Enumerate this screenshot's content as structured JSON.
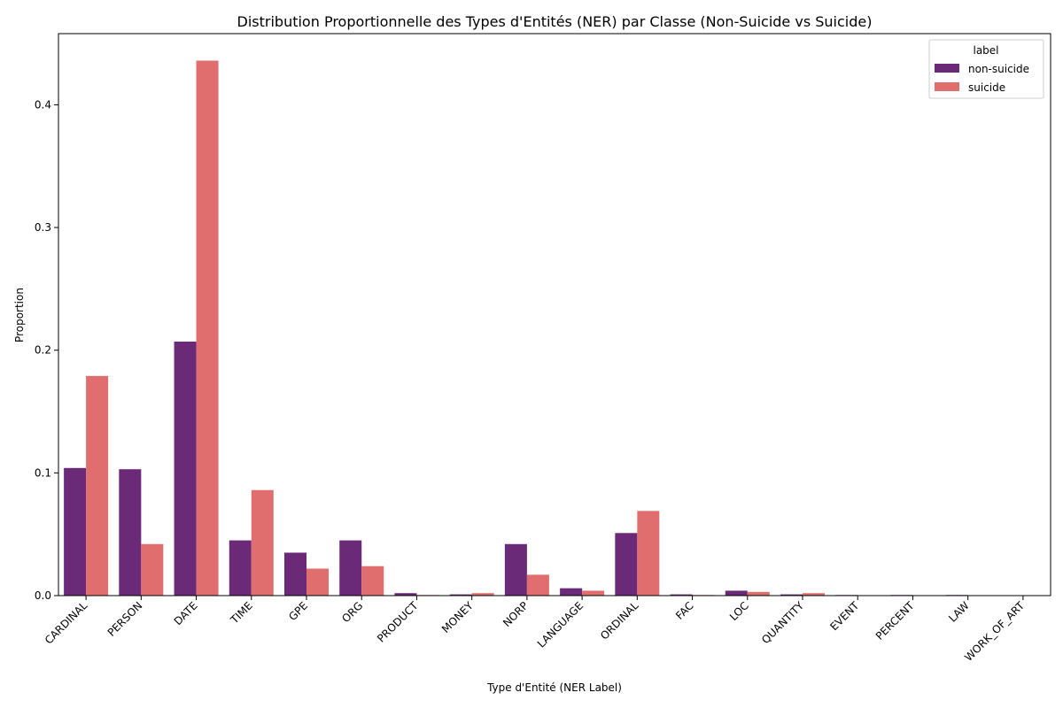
{
  "chart_data": {
    "type": "bar",
    "title": "Distribution Proportionnelle des Types d'Entités (NER) par Classe (Non-Suicide vs Suicide)",
    "xlabel": "Type d'Entité (NER Label)",
    "ylabel": "Proportion",
    "ylim": [
      0,
      0.458
    ],
    "yticks": [
      "0.0",
      "0.1",
      "0.2",
      "0.3",
      "0.4"
    ],
    "grid": false,
    "legend": {
      "title": "label",
      "placement": "top-right"
    },
    "categories": [
      "CARDINAL",
      "PERSON",
      "DATE",
      "TIME",
      "GPE",
      "ORG",
      "PRODUCT",
      "MONEY",
      "NORP",
      "LANGUAGE",
      "ORDINAL",
      "FAC",
      "LOC",
      "QUANTITY",
      "EVENT",
      "PERCENT",
      "LAW",
      "WORK_OF_ART"
    ],
    "series": [
      {
        "name": "non-suicide",
        "color": "#6b2a78",
        "values": [
          0.104,
          0.103,
          0.207,
          0.045,
          0.035,
          0.045,
          0.002,
          0.001,
          0.042,
          0.006,
          0.051,
          0.001,
          0.004,
          0.001,
          0.0005,
          0.0005,
          0.0005,
          0.0
        ]
      },
      {
        "name": "suicide",
        "color": "#e06e6e",
        "values": [
          0.179,
          0.042,
          0.436,
          0.086,
          0.022,
          0.024,
          0.0005,
          0.002,
          0.017,
          0.004,
          0.069,
          0.0005,
          0.003,
          0.002,
          0.0,
          0.0,
          0.0,
          0.0
        ]
      }
    ]
  }
}
